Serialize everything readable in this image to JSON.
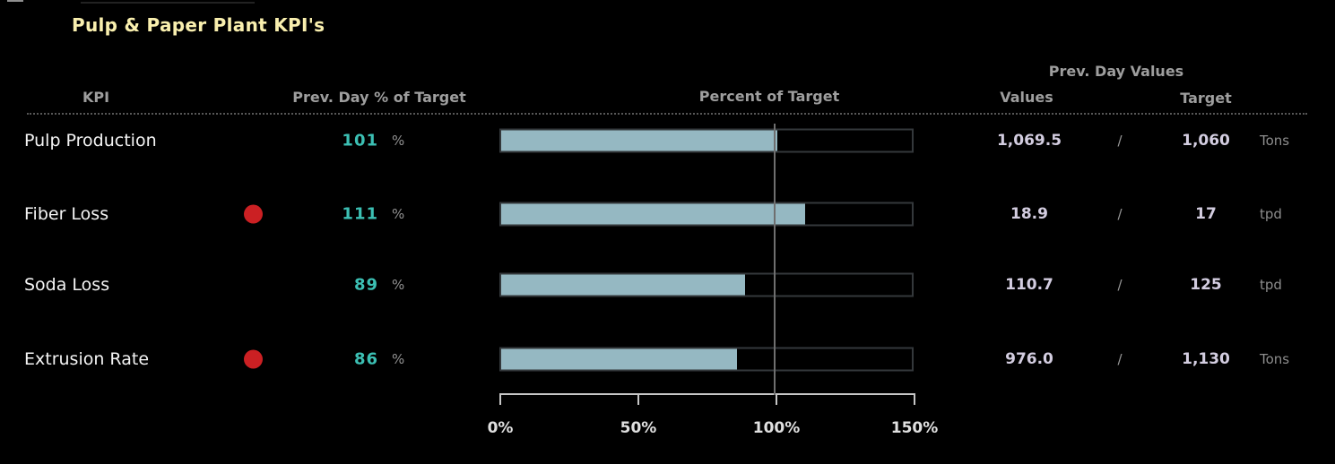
{
  "title": "Pulp & Paper Plant KPI's",
  "percent_sign": "%",
  "columns": {
    "kpi": "KPI",
    "prev_day_pct": "Prev. Day % of Target",
    "percent_of_target": "Percent of Target",
    "prev_day_values": "Prev. Day Values",
    "values": "Values",
    "target": "Target"
  },
  "rows": [
    {
      "name": "Pulp Production",
      "alert": false,
      "pct": "101",
      "pct_num": 101,
      "value": "1,069.5",
      "slash": "/",
      "target": "1,060",
      "unit": "Tons"
    },
    {
      "name": "Fiber Loss",
      "alert": true,
      "pct": "111",
      "pct_num": 111,
      "value": "18.9",
      "slash": "/",
      "target": "17",
      "unit": "tpd"
    },
    {
      "name": "Soda Loss",
      "alert": false,
      "pct": "89",
      "pct_num": 89,
      "value": "110.7",
      "slash": "/",
      "target": "125",
      "unit": "tpd"
    },
    {
      "name": "Extrusion Rate",
      "alert": true,
      "pct": "86",
      "pct_num": 86,
      "value": "976.0",
      "slash": "/",
      "target": "1,130",
      "unit": "Tons"
    }
  ],
  "axis": {
    "ticks": [
      "0%",
      "50%",
      "100%",
      "150%"
    ],
    "max": 150,
    "reference_pct": 100
  },
  "colors": {
    "background": "#000000",
    "title_yellow": "#f9efae",
    "header_gray": "#9e9e9e",
    "kpi_text_white": "#f4f4f4",
    "accent_teal": "#3cc0b4",
    "alert_red": "#cb2023",
    "bar_fill": "#95b8c2",
    "bar_border": "#34383b",
    "reference_line_gray": "#6f6f6f",
    "value_lavender": "#d3cde0",
    "unit_gray": "#8d8d8d",
    "axis_gray": "#c6c6c6"
  },
  "chart_data": {
    "type": "bar",
    "orientation": "horizontal",
    "title": "Pulp & Paper Plant KPI's",
    "categories": [
      "Pulp Production",
      "Fiber Loss",
      "Soda Loss",
      "Extrusion Rate"
    ],
    "series": [
      {
        "name": "Prev. Day % of Target",
        "values": [
          101,
          111,
          89,
          86
        ]
      },
      {
        "name": "Prev. Day Value",
        "values": [
          1069.5,
          18.9,
          110.7,
          976.0
        ]
      },
      {
        "name": "Target",
        "values": [
          1060,
          17,
          125,
          1130
        ]
      }
    ],
    "units": [
      "Tons",
      "tpd",
      "tpd",
      "Tons"
    ],
    "alert_flags": [
      false,
      true,
      false,
      true
    ],
    "xlabel": "Percent of Target",
    "tick_labels": [
      "0%",
      "50%",
      "100%",
      "150%"
    ],
    "xlim": [
      0,
      150
    ],
    "reference_line_pct": 100,
    "grid": false,
    "legend_position": "none"
  }
}
